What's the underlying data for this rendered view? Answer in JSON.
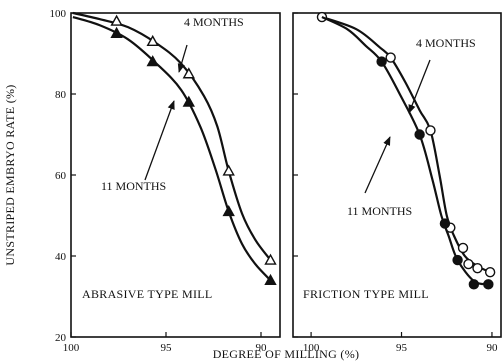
{
  "chart_data": {
    "type": "line",
    "xlabel": "DEGREE OF MILLING (%)",
    "ylabel": "UNSTRIPED EMBRYO RATE (%)",
    "ylim": [
      20,
      100
    ],
    "yticks": [
      20,
      40,
      60,
      80,
      100
    ],
    "grid": false,
    "panels": [
      {
        "label": "ABRASIVE TYPE MILL",
        "xlim": [
          100,
          89
        ],
        "xticks": [
          100,
          95,
          90
        ],
        "series": [
          {
            "name": "4 MONTHS",
            "marker": "open-triangle",
            "x": [
              97.6,
              95.7,
              93.8,
              91.7,
              89.5
            ],
            "y": [
              98,
              93,
              85,
              61,
              39
            ],
            "curve": [
              [
                99.9,
                100
              ],
              [
                98.5,
                98.5
              ],
              [
                97.0,
                96.5
              ],
              [
                95.5,
                92.5
              ],
              [
                94.2,
                87.5
              ],
              [
                93.0,
                79.5
              ],
              [
                92.3,
                72
              ],
              [
                91.7,
                61
              ],
              [
                91.0,
                50.5
              ],
              [
                90.3,
                44
              ],
              [
                89.5,
                39
              ]
            ]
          },
          {
            "name": "11 MONTHS",
            "marker": "filled-triangle",
            "x": [
              97.6,
              95.7,
              93.8,
              91.7,
              89.5
            ],
            "y": [
              95,
              88,
              78,
              51,
              34
            ],
            "curve": [
              [
                99.9,
                99
              ],
              [
                98.5,
                97
              ],
              [
                97.0,
                93.5
              ],
              [
                95.5,
                87.5
              ],
              [
                94.2,
                81
              ],
              [
                93.2,
                72
              ],
              [
                92.4,
                61.5
              ],
              [
                91.7,
                51
              ],
              [
                91.0,
                43
              ],
              [
                90.3,
                38
              ],
              [
                89.5,
                34
              ]
            ]
          }
        ]
      },
      {
        "label": "FRICTION TYPE MILL",
        "xlim": [
          101,
          89.5
        ],
        "xticks": [
          100,
          95,
          90
        ],
        "series": [
          {
            "name": "4 MONTHS",
            "marker": "open-circle",
            "x": [
              99.4,
              95.6,
              93.4,
              92.3,
              91.6,
              91.3,
              90.8,
              90.1
            ],
            "y": [
              99,
              89,
              71,
              47,
              42,
              38,
              37,
              36
            ],
            "curve": [
              [
                99.4,
                99
              ],
              [
                97.5,
                96
              ],
              [
                96.2,
                91.5
              ],
              [
                95.6,
                89
              ],
              [
                94.8,
                83
              ],
              [
                94.0,
                76
              ],
              [
                93.4,
                71
              ],
              [
                92.9,
                60
              ],
              [
                92.5,
                50
              ],
              [
                92.1,
                45
              ],
              [
                91.5,
                40
              ],
              [
                90.8,
                37.5
              ],
              [
                90.1,
                36
              ]
            ]
          },
          {
            "name": "11 MONTHS",
            "marker": "filled-circle",
            "x": [
              96.1,
              94.0,
              92.6,
              91.9,
              91.0,
              90.2
            ],
            "y": [
              88,
              70,
              48,
              39,
              33,
              33
            ],
            "curve": [
              [
                99.4,
                99
              ],
              [
                98.0,
                96
              ],
              [
                97.0,
                92
              ],
              [
                96.1,
                88
              ],
              [
                95.1,
                80
              ],
              [
                94.0,
                70
              ],
              [
                93.3,
                59
              ],
              [
                92.8,
                50
              ],
              [
                92.4,
                45
              ],
              [
                91.9,
                39
              ],
              [
                91.0,
                33.8
              ],
              [
                90.2,
                33
              ]
            ]
          }
        ]
      }
    ]
  }
}
